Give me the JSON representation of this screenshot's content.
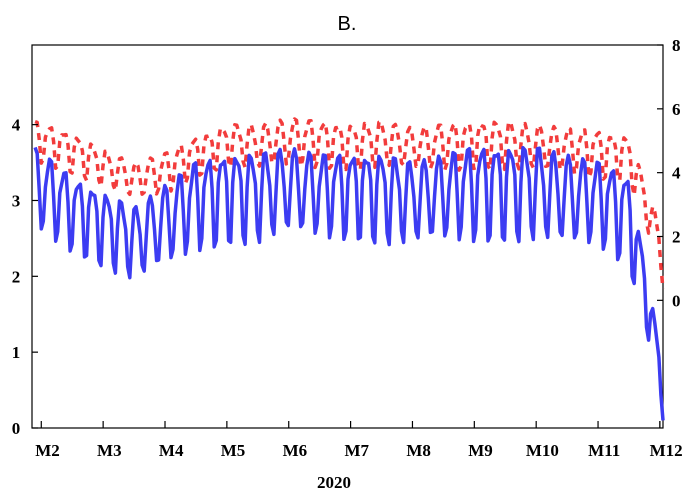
{
  "chart_data": {
    "type": "line",
    "title": "B.",
    "xlabel": "2020",
    "x_ticks": [
      "M2",
      "M3",
      "M4",
      "M5",
      "M6",
      "M7",
      "M8",
      "M9",
      "M10",
      "M11",
      "M12"
    ],
    "y_left": {
      "ticks": [
        "0",
        "1",
        "2",
        "3",
        "4"
      ],
      "lim": [
        0,
        5.05
      ]
    },
    "y_right": {
      "ticks": [
        "0",
        "2",
        "4",
        "6",
        "8"
      ],
      "lim": [
        -4,
        8.0
      ]
    },
    "x_range_months": [
      1.85,
      12.05
    ],
    "grid": false,
    "series": [
      {
        "axis": "right",
        "color": "#f23c3c",
        "dash": "dashed",
        "envelope": {
          "months": [
            1.9,
            2.5,
            3.0,
            3.5,
            4.0,
            4.5,
            5.0,
            5.5,
            6.0,
            6.5,
            7.0,
            7.5,
            8.0,
            8.5,
            9.0,
            9.5,
            10.0,
            10.5,
            11.0,
            11.5,
            12.0,
            12.05
          ],
          "peak": [
            5.6,
            5.2,
            4.7,
            4.3,
            4.6,
            5.1,
            5.5,
            5.5,
            5.7,
            5.6,
            5.5,
            5.6,
            5.4,
            5.5,
            5.6,
            5.6,
            5.5,
            5.4,
            5.3,
            5.1,
            2.3,
            1.5
          ],
          "trough": [
            3.7,
            3.3,
            2.9,
            2.5,
            2.6,
            3.2,
            3.5,
            3.3,
            3.3,
            3.4,
            3.3,
            3.4,
            3.3,
            3.3,
            3.3,
            3.3,
            3.2,
            3.2,
            3.0,
            3.0,
            0.5,
            -0.4
          ]
        }
      },
      {
        "axis": "left",
        "color": "#3c3cf2",
        "dash": "solid",
        "envelope": {
          "months": [
            1.9,
            2.5,
            3.0,
            3.5,
            4.0,
            4.5,
            5.0,
            5.5,
            6.0,
            6.5,
            7.0,
            7.5,
            8.0,
            8.5,
            9.0,
            9.5,
            10.0,
            10.5,
            11.0,
            11.5,
            11.8,
            12.0,
            12.05
          ],
          "peak": [
            3.7,
            3.3,
            3.1,
            2.9,
            3.2,
            3.5,
            3.6,
            3.6,
            3.7,
            3.6,
            3.6,
            3.6,
            3.5,
            3.6,
            3.7,
            3.7,
            3.7,
            3.6,
            3.5,
            3.3,
            2.0,
            1.0,
            0.1
          ],
          "trough": [
            2.0,
            1.8,
            1.6,
            1.4,
            1.5,
            1.7,
            1.8,
            1.8,
            1.9,
            1.9,
            1.9,
            1.8,
            1.8,
            1.8,
            1.8,
            1.8,
            1.8,
            1.7,
            1.8,
            1.5,
            0.8,
            0.3,
            0.1
          ]
        }
      }
    ]
  }
}
